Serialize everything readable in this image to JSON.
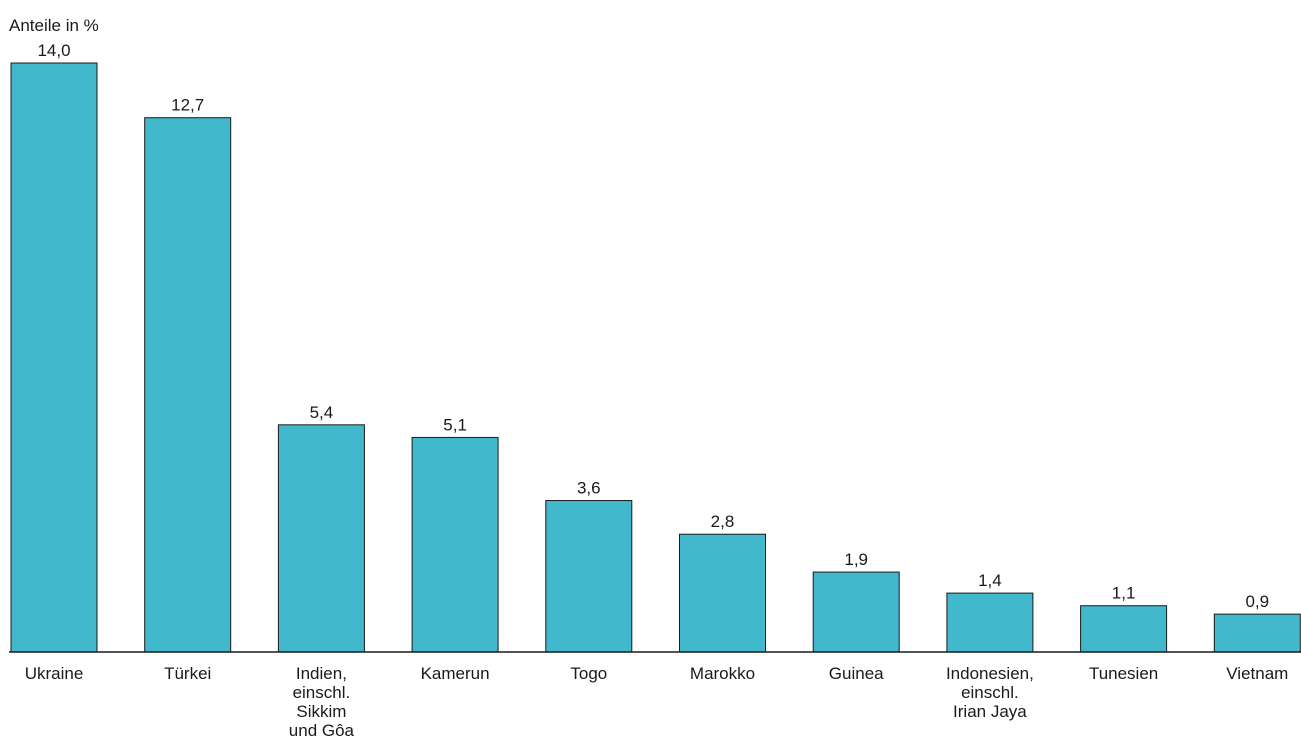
{
  "chart_data": {
    "type": "bar",
    "unit_label": "Anteile in %",
    "categories": [
      [
        "Ukraine"
      ],
      [
        "Türkei"
      ],
      [
        "Indien,",
        "einschl.",
        "Sikkim",
        "und Gôa"
      ],
      [
        "Kamerun"
      ],
      [
        "Togo"
      ],
      [
        "Marokko"
      ],
      [
        "Guinea"
      ],
      [
        "Indonesien,",
        "einschl.",
        "Irian Jaya"
      ],
      [
        "Tunesien"
      ],
      [
        "Vietnam"
      ]
    ],
    "values": [
      14.0,
      12.7,
      5.4,
      5.1,
      3.6,
      2.8,
      1.9,
      1.4,
      1.1,
      0.9
    ],
    "value_labels": [
      "14,0",
      "12,7",
      "5,4",
      "5,1",
      "3,6",
      "2,8",
      "1,9",
      "1,4",
      "1,1",
      "0,9"
    ],
    "ylim": [
      0,
      14.0
    ],
    "grid": false,
    "legend": "none",
    "colors": {
      "bar": "#41b8cc",
      "bar_stroke": "#1a1a1a",
      "baseline": "#1a1a1a",
      "text": "#1a1a1a"
    }
  }
}
